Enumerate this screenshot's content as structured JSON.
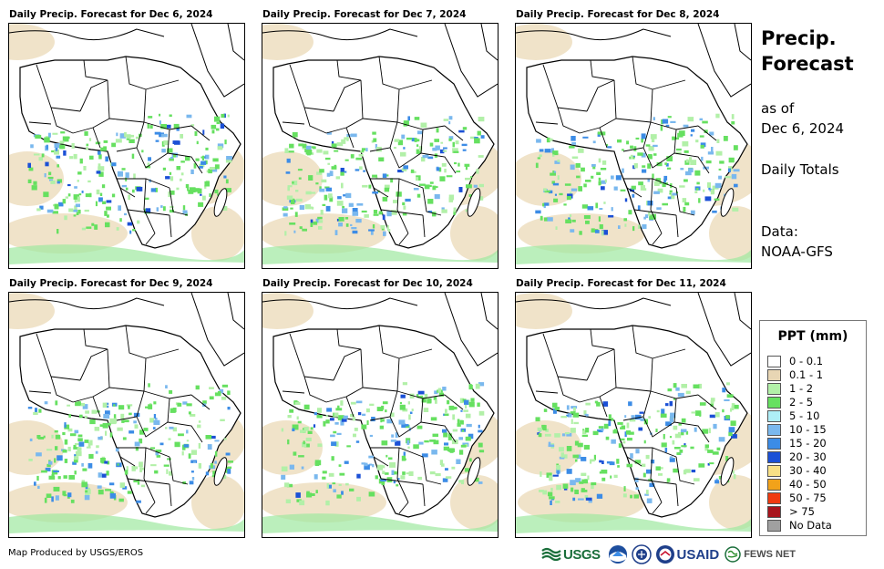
{
  "panels": [
    {
      "title": "Daily Precip. Forecast for Dec 6, 2024"
    },
    {
      "title": "Daily Precip. Forecast for Dec 7, 2024"
    },
    {
      "title": "Daily Precip. Forecast for Dec 8, 2024"
    },
    {
      "title": "Daily Precip. Forecast for Dec 9, 2024"
    },
    {
      "title": "Daily Precip. Forecast for Dec 10, 2024"
    },
    {
      "title": "Daily Precip. Forecast for Dec 11, 2024"
    }
  ],
  "side": {
    "title_line1": "Precip.",
    "title_line2": "Forecast",
    "asof_line1": "as of",
    "asof_line2": "Dec 6, 2024",
    "totals": "Daily Totals",
    "data_line1": "Data:",
    "data_line2": "NOAA-GFS"
  },
  "legend": {
    "title": "PPT (mm)",
    "items": [
      {
        "label": "0 - 0.1",
        "color": "#ffffff"
      },
      {
        "label": "0.1 - 1",
        "color": "#e8d6b4"
      },
      {
        "label": "1 - 2",
        "color": "#b2f0a8"
      },
      {
        "label": "2 - 5",
        "color": "#66e060"
      },
      {
        "label": "5 - 10",
        "color": "#aeeef7"
      },
      {
        "label": "10 - 15",
        "color": "#7ab8ee"
      },
      {
        "label": "15 - 20",
        "color": "#3c8ce6"
      },
      {
        "label": "20 - 30",
        "color": "#1b50d6"
      },
      {
        "label": "30 - 40",
        "color": "#f8e086"
      },
      {
        "label": "40 - 50",
        "color": "#f2a21a"
      },
      {
        "label": "50 - 75",
        "color": "#f03a10"
      },
      {
        "label": "> 75",
        "color": "#a8141c"
      },
      {
        "label": "No Data",
        "color": "#a0a0a0"
      }
    ]
  },
  "credit": "Map Produced by USGS/EROS",
  "logos": {
    "usgs": "USGS",
    "usaid": "USAID",
    "fews": "FEWS NET"
  }
}
